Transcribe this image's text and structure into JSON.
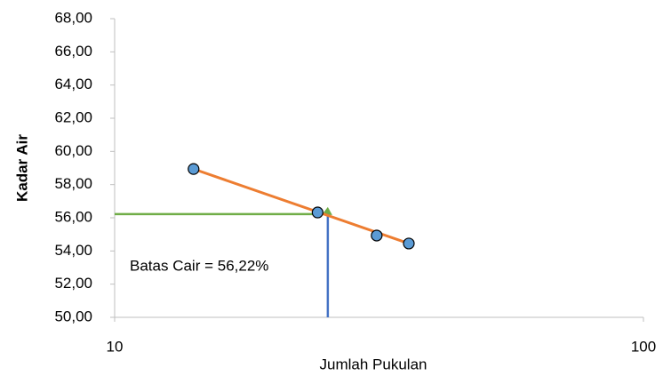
{
  "chart_data": {
    "type": "scatter",
    "x_label": "Jumlah Pukulan",
    "y_label": "Kadar Air",
    "xscale": "log",
    "xlim": [
      10,
      100
    ],
    "xticks": [
      10,
      100
    ],
    "ylim": [
      50,
      68
    ],
    "yticks": [
      {
        "value": 50,
        "label": "50,00"
      },
      {
        "value": 52,
        "label": "52,00"
      },
      {
        "value": 54,
        "label": "54,00"
      },
      {
        "value": 56,
        "label": "56,00"
      },
      {
        "value": 58,
        "label": "58,00"
      },
      {
        "value": 60,
        "label": "60,00"
      },
      {
        "value": 62,
        "label": "62,00"
      },
      {
        "value": 64,
        "label": "64,00"
      },
      {
        "value": 66,
        "label": "66,00"
      },
      {
        "value": 68,
        "label": "68,00"
      }
    ],
    "grid": false,
    "series": [
      {
        "color": "#5b9bd5",
        "x": [
          14.1,
          24.2,
          31.3,
          36.0
        ],
        "values": [
          58.94,
          56.32,
          54.93,
          54.45
        ]
      }
    ],
    "trendline": {
      "color": "#ed7d31",
      "x": [
        14.1,
        36.0
      ],
      "values": [
        58.94,
        54.45
      ]
    },
    "guide": {
      "x": 25.3,
      "y": 56.22,
      "h_color": "#70ad47",
      "v_color": "#4472c4"
    },
    "annotation": "Batas Cair = 56,22%"
  }
}
